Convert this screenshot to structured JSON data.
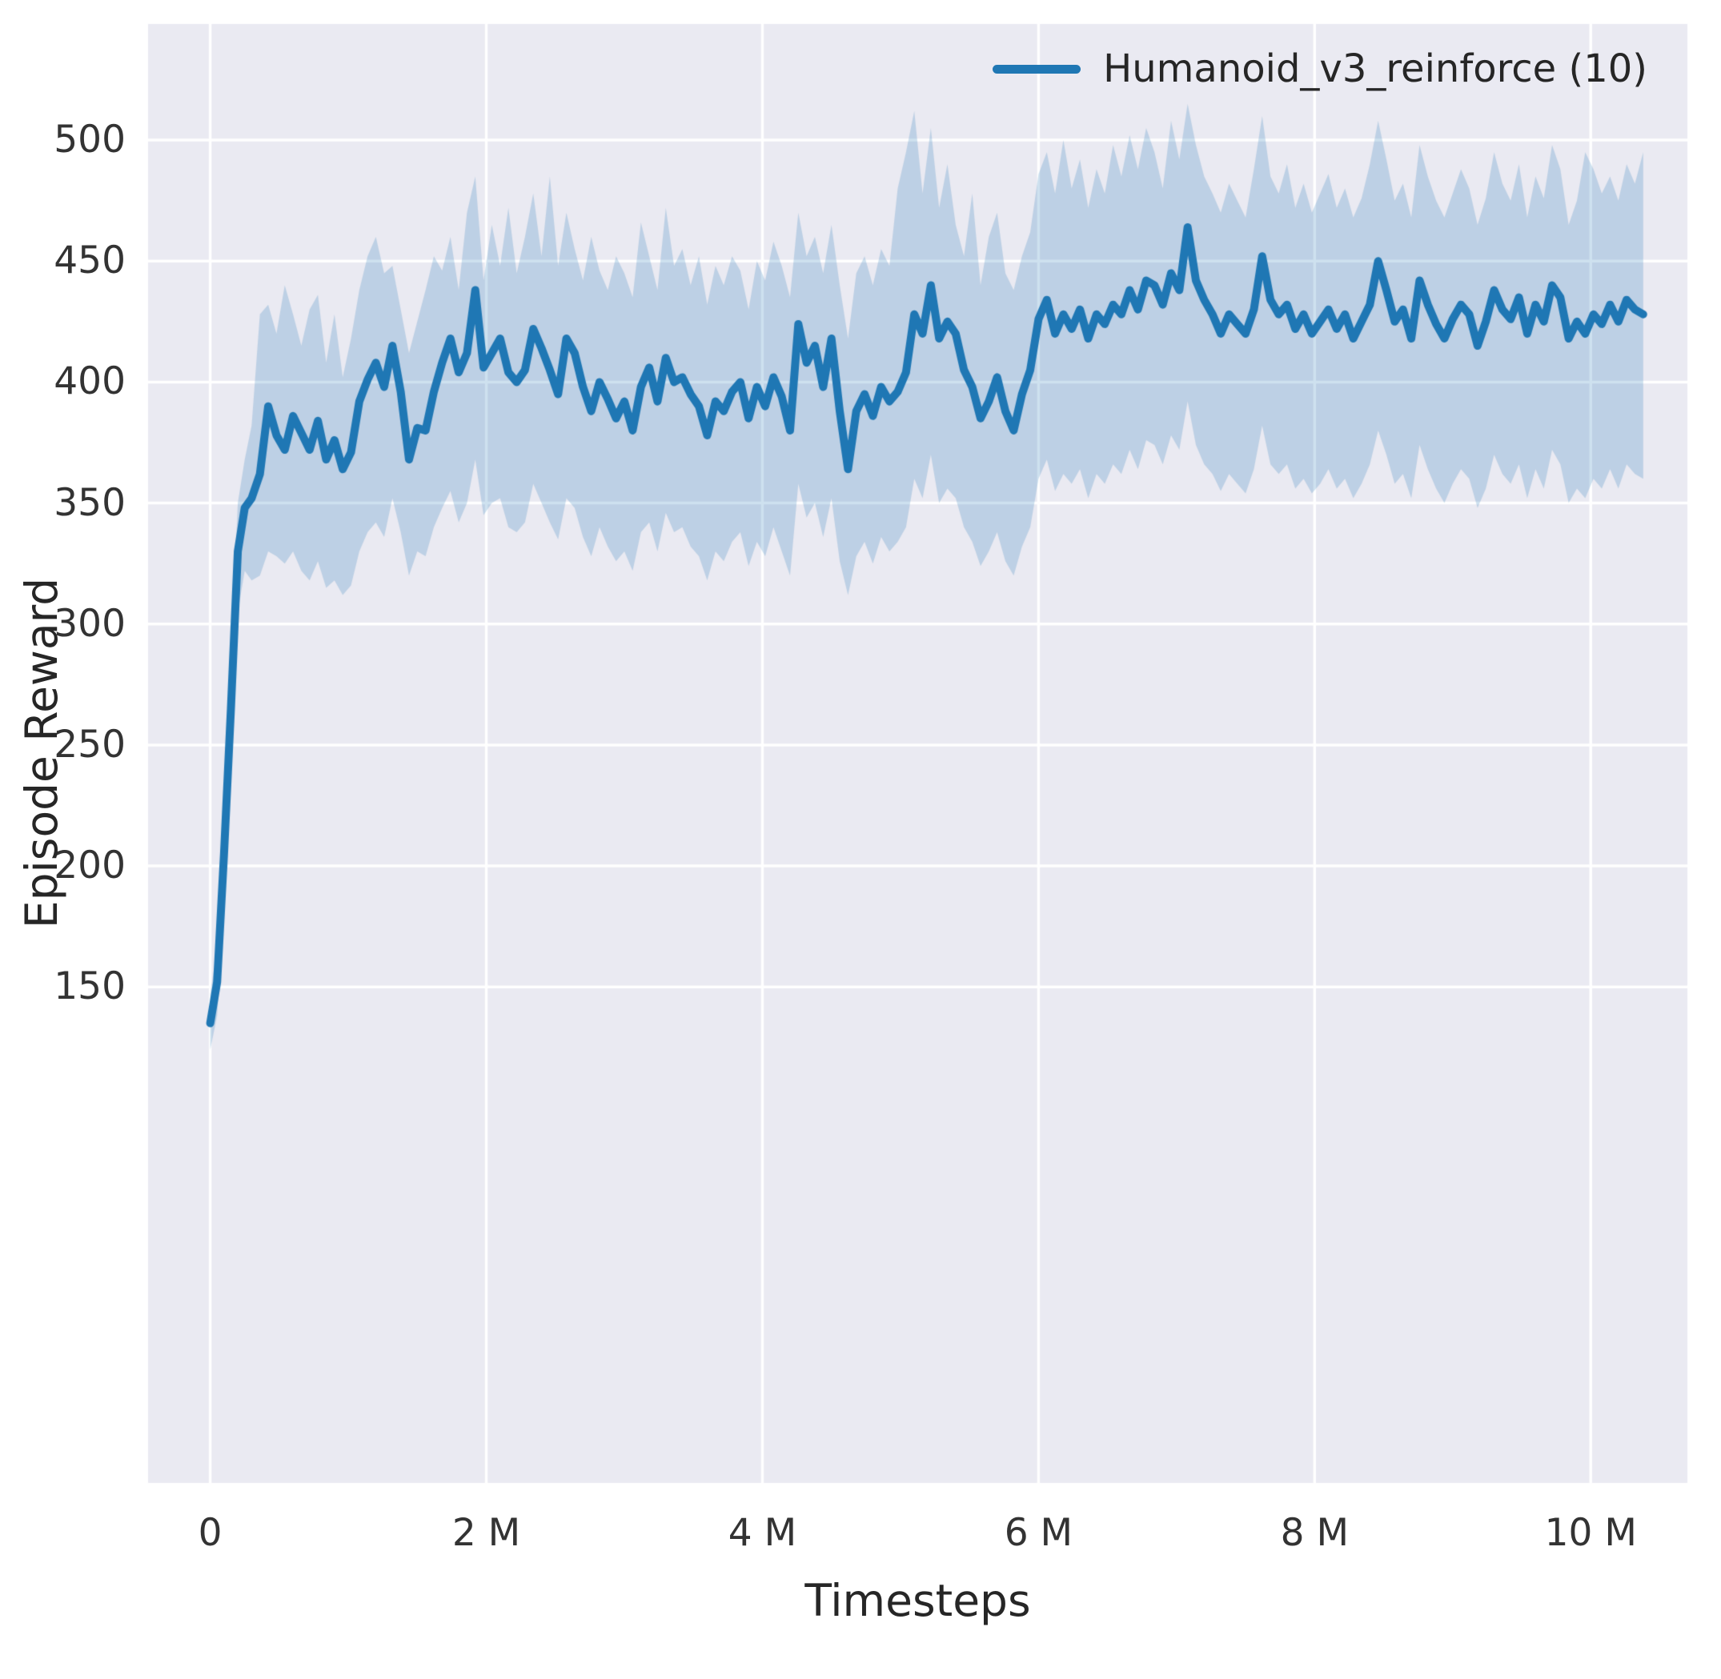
{
  "figure": {
    "background": "#ffffff",
    "plot_background": "#eaeaf2",
    "grid_color": "#ffffff",
    "tick_color": "#333333"
  },
  "chart_data": {
    "type": "line",
    "title": "",
    "xlabel": "Timesteps",
    "ylabel": "Episode Reward",
    "x_unit": "millions of timesteps",
    "grid": true,
    "xlim": [
      -0.45,
      10.7
    ],
    "ylim": [
      -55,
      548
    ],
    "x_ticks": {
      "values": [
        0,
        2,
        4,
        6,
        8,
        10
      ],
      "labels": [
        "0",
        "2 M",
        "4 M",
        "6 M",
        "8 M",
        "10 M"
      ]
    },
    "y_ticks": {
      "values": [
        150,
        200,
        250,
        300,
        350,
        400,
        450,
        500
      ],
      "labels": [
        "150",
        "200",
        "250",
        "300",
        "350",
        "400",
        "450",
        "500"
      ]
    },
    "legend": {
      "position": "upper right",
      "entries": [
        {
          "label": "Humanoid_v3_reinforce (10)",
          "color": "#1f77b4"
        }
      ]
    },
    "series": [
      {
        "name": "Humanoid_v3_reinforce (10)",
        "color": "#1f77b4",
        "band_color": "rgba(31,119,180,0.22)",
        "points_format": [
          "x_millions",
          "mean",
          "band_low",
          "band_high"
        ],
        "points": [
          [
            0.0,
            135,
            124,
            147
          ],
          [
            0.05,
            152,
            138,
            166
          ],
          [
            0.1,
            205,
            182,
            228
          ],
          [
            0.15,
            265,
            240,
            288
          ],
          [
            0.2,
            330,
            305,
            350
          ],
          [
            0.25,
            348,
            322,
            368
          ],
          [
            0.3,
            352,
            318,
            382
          ],
          [
            0.36,
            362,
            320,
            428
          ],
          [
            0.42,
            390,
            330,
            432
          ],
          [
            0.48,
            378,
            328,
            420
          ],
          [
            0.54,
            372,
            325,
            440
          ],
          [
            0.6,
            386,
            330,
            428
          ],
          [
            0.66,
            379,
            322,
            415
          ],
          [
            0.72,
            372,
            318,
            430
          ],
          [
            0.78,
            384,
            326,
            436
          ],
          [
            0.84,
            368,
            315,
            408
          ],
          [
            0.9,
            376,
            318,
            428
          ],
          [
            0.96,
            364,
            312,
            402
          ],
          [
            1.02,
            371,
            316,
            418
          ],
          [
            1.08,
            392,
            330,
            438
          ],
          [
            1.14,
            401,
            338,
            452
          ],
          [
            1.2,
            408,
            342,
            460
          ],
          [
            1.26,
            398,
            336,
            445
          ],
          [
            1.32,
            415,
            352,
            448
          ],
          [
            1.38,
            396,
            338,
            430
          ],
          [
            1.44,
            368,
            320,
            412
          ],
          [
            1.5,
            381,
            330,
            425
          ],
          [
            1.56,
            380,
            328,
            438
          ],
          [
            1.62,
            396,
            340,
            452
          ],
          [
            1.68,
            408,
            348,
            446
          ],
          [
            1.74,
            418,
            355,
            460
          ],
          [
            1.8,
            404,
            342,
            438
          ],
          [
            1.86,
            412,
            350,
            470
          ],
          [
            1.92,
            438,
            368,
            485
          ],
          [
            1.98,
            406,
            345,
            442
          ],
          [
            2.04,
            412,
            350,
            465
          ],
          [
            2.1,
            418,
            352,
            448
          ],
          [
            2.16,
            404,
            340,
            472
          ],
          [
            2.22,
            400,
            338,
            445
          ],
          [
            2.28,
            405,
            342,
            460
          ],
          [
            2.34,
            422,
            358,
            478
          ],
          [
            2.4,
            414,
            350,
            452
          ],
          [
            2.46,
            405,
            342,
            485
          ],
          [
            2.52,
            395,
            335,
            448
          ],
          [
            2.58,
            418,
            352,
            470
          ],
          [
            2.64,
            412,
            348,
            455
          ],
          [
            2.7,
            398,
            336,
            442
          ],
          [
            2.76,
            388,
            328,
            460
          ],
          [
            2.82,
            400,
            340,
            446
          ],
          [
            2.88,
            393,
            332,
            438
          ],
          [
            2.94,
            385,
            326,
            452
          ],
          [
            3.0,
            392,
            330,
            445
          ],
          [
            3.06,
            380,
            322,
            435
          ],
          [
            3.12,
            398,
            338,
            466
          ],
          [
            3.18,
            406,
            342,
            452
          ],
          [
            3.24,
            392,
            330,
            438
          ],
          [
            3.3,
            410,
            346,
            472
          ],
          [
            3.36,
            400,
            338,
            448
          ],
          [
            3.42,
            402,
            340,
            455
          ],
          [
            3.48,
            395,
            332,
            440
          ],
          [
            3.54,
            390,
            328,
            452
          ],
          [
            3.6,
            378,
            318,
            432
          ],
          [
            3.66,
            392,
            330,
            448
          ],
          [
            3.72,
            388,
            326,
            440
          ],
          [
            3.78,
            396,
            334,
            452
          ],
          [
            3.84,
            400,
            338,
            446
          ],
          [
            3.9,
            385,
            324,
            430
          ],
          [
            3.96,
            398,
            334,
            450
          ],
          [
            4.02,
            390,
            328,
            442
          ],
          [
            4.08,
            402,
            340,
            458
          ],
          [
            4.14,
            394,
            330,
            448
          ],
          [
            4.2,
            380,
            320,
            435
          ],
          [
            4.26,
            424,
            358,
            470
          ],
          [
            4.32,
            408,
            344,
            452
          ],
          [
            4.38,
            415,
            350,
            460
          ],
          [
            4.44,
            398,
            336,
            445
          ],
          [
            4.5,
            418,
            352,
            465
          ],
          [
            4.56,
            388,
            326,
            440
          ],
          [
            4.62,
            364,
            312,
            418
          ],
          [
            4.68,
            388,
            328,
            445
          ],
          [
            4.74,
            395,
            334,
            452
          ],
          [
            4.8,
            386,
            325,
            440
          ],
          [
            4.86,
            398,
            336,
            455
          ],
          [
            4.92,
            392,
            330,
            448
          ],
          [
            4.98,
            396,
            334,
            480
          ],
          [
            5.04,
            404,
            340,
            495
          ],
          [
            5.1,
            428,
            360,
            512
          ],
          [
            5.16,
            420,
            352,
            478
          ],
          [
            5.22,
            440,
            370,
            505
          ],
          [
            5.28,
            418,
            350,
            472
          ],
          [
            5.34,
            425,
            356,
            490
          ],
          [
            5.4,
            420,
            352,
            465
          ],
          [
            5.46,
            405,
            340,
            452
          ],
          [
            5.52,
            398,
            334,
            478
          ],
          [
            5.58,
            385,
            324,
            440
          ],
          [
            5.64,
            392,
            330,
            460
          ],
          [
            5.7,
            402,
            338,
            470
          ],
          [
            5.76,
            388,
            326,
            445
          ],
          [
            5.82,
            380,
            320,
            438
          ],
          [
            5.88,
            395,
            332,
            452
          ],
          [
            5.94,
            405,
            340,
            462
          ],
          [
            6.0,
            426,
            360,
            486
          ],
          [
            6.06,
            434,
            368,
            495
          ],
          [
            6.12,
            420,
            355,
            478
          ],
          [
            6.18,
            428,
            362,
            500
          ],
          [
            6.24,
            422,
            358,
            480
          ],
          [
            6.3,
            430,
            364,
            492
          ],
          [
            6.36,
            418,
            352,
            472
          ],
          [
            6.42,
            428,
            362,
            488
          ],
          [
            6.48,
            424,
            358,
            478
          ],
          [
            6.54,
            432,
            366,
            498
          ],
          [
            6.6,
            428,
            362,
            485
          ],
          [
            6.66,
            438,
            372,
            502
          ],
          [
            6.72,
            430,
            364,
            488
          ],
          [
            6.78,
            442,
            376,
            505
          ],
          [
            6.84,
            440,
            374,
            495
          ],
          [
            6.9,
            432,
            366,
            480
          ],
          [
            6.96,
            445,
            378,
            508
          ],
          [
            7.02,
            438,
            372,
            492
          ],
          [
            7.08,
            464,
            392,
            515
          ],
          [
            7.14,
            442,
            374,
            498
          ],
          [
            7.2,
            434,
            366,
            485
          ],
          [
            7.26,
            428,
            362,
            478
          ],
          [
            7.32,
            420,
            355,
            470
          ],
          [
            7.38,
            428,
            362,
            482
          ],
          [
            7.44,
            424,
            358,
            475
          ],
          [
            7.5,
            420,
            354,
            468
          ],
          [
            7.56,
            430,
            364,
            488
          ],
          [
            7.62,
            452,
            382,
            510
          ],
          [
            7.68,
            434,
            366,
            485
          ],
          [
            7.74,
            428,
            362,
            478
          ],
          [
            7.8,
            432,
            366,
            490
          ],
          [
            7.86,
            422,
            356,
            472
          ],
          [
            7.92,
            428,
            360,
            482
          ],
          [
            7.98,
            420,
            354,
            470
          ],
          [
            8.04,
            425,
            358,
            478
          ],
          [
            8.1,
            430,
            364,
            486
          ],
          [
            8.16,
            422,
            356,
            472
          ],
          [
            8.22,
            428,
            360,
            480
          ],
          [
            8.28,
            418,
            352,
            468
          ],
          [
            8.34,
            425,
            358,
            476
          ],
          [
            8.4,
            432,
            366,
            490
          ],
          [
            8.46,
            450,
            380,
            508
          ],
          [
            8.52,
            438,
            370,
            492
          ],
          [
            8.58,
            425,
            358,
            475
          ],
          [
            8.64,
            430,
            362,
            482
          ],
          [
            8.7,
            418,
            352,
            468
          ],
          [
            8.76,
            442,
            374,
            498
          ],
          [
            8.82,
            432,
            364,
            485
          ],
          [
            8.88,
            424,
            356,
            475
          ],
          [
            8.94,
            418,
            350,
            468
          ],
          [
            9.0,
            426,
            358,
            478
          ],
          [
            9.06,
            432,
            364,
            488
          ],
          [
            9.12,
            428,
            360,
            480
          ],
          [
            9.18,
            415,
            348,
            465
          ],
          [
            9.24,
            425,
            356,
            476
          ],
          [
            9.3,
            438,
            370,
            495
          ],
          [
            9.36,
            430,
            362,
            482
          ],
          [
            9.42,
            426,
            358,
            475
          ],
          [
            9.48,
            435,
            366,
            490
          ],
          [
            9.54,
            420,
            352,
            468
          ],
          [
            9.6,
            432,
            364,
            485
          ],
          [
            9.66,
            425,
            356,
            476
          ],
          [
            9.72,
            440,
            372,
            498
          ],
          [
            9.78,
            435,
            366,
            488
          ],
          [
            9.84,
            418,
            350,
            465
          ],
          [
            9.9,
            425,
            356,
            475
          ],
          [
            9.96,
            420,
            352,
            495
          ],
          [
            10.02,
            428,
            360,
            488
          ],
          [
            10.08,
            424,
            356,
            478
          ],
          [
            10.14,
            432,
            364,
            485
          ],
          [
            10.2,
            425,
            356,
            475
          ],
          [
            10.26,
            434,
            366,
            490
          ],
          [
            10.32,
            430,
            362,
            482
          ],
          [
            10.38,
            428,
            360,
            495
          ]
        ]
      }
    ]
  }
}
